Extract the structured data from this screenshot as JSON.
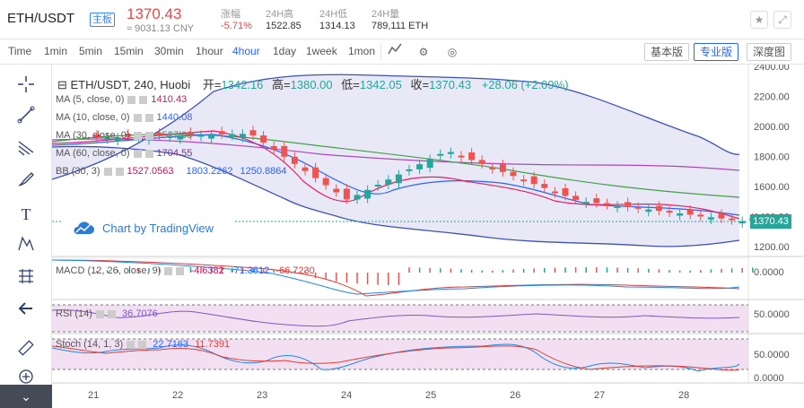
{
  "topbar": {
    "pair": "ETH/USDT",
    "badge": "主板",
    "price": "1370.43",
    "cny": "≈ 9031.13 CNY",
    "stats": [
      {
        "label": "涨幅",
        "value": "-5.71%",
        "color": "#e34b4b"
      },
      {
        "label": "24H高",
        "value": "1522.85",
        "color": "#333333"
      },
      {
        "label": "24H低",
        "value": "1314.13",
        "color": "#333333"
      },
      {
        "label": "24H量",
        "value": "789,111 ETH",
        "color": "#333333"
      }
    ],
    "star_icon": "star-icon",
    "fullscreen_icon": "fullscreen-icon"
  },
  "toolbar": {
    "timeframes": [
      "Time",
      "1min",
      "5min",
      "15min",
      "30min",
      "1hour",
      "4hour",
      "1day",
      "1week",
      "1mon"
    ],
    "active_timeframe": "4hour",
    "versions": [
      "基本版",
      "专业版",
      "深度图"
    ],
    "active_version": "专业版"
  },
  "chart_header": {
    "title": "ETH/USDT, 240, Huobi",
    "open_label": "开=",
    "open": "1342.16",
    "high_label": "高=",
    "high": "1380.00",
    "low_label": "低=",
    "low": "1342.05",
    "close_label": "收=",
    "close": "1370.43",
    "change": "+28.06 (+2.09%)"
  },
  "legends": {
    "ma5": {
      "label": "MA (5, close, 0)",
      "value": "1410.43",
      "color": "#c2185b"
    },
    "ma10": {
      "label": "MA (10, close, 0)",
      "value": "1440.08",
      "color": "#2962ff"
    },
    "ma30": {
      "label": "MA (30, close, 0)",
      "value": "1527.06",
      "color": "#43a047"
    },
    "ma60": {
      "label": "MA (60, close, 0)",
      "value": "1704.55",
      "color": "#8e24aa"
    },
    "bb": {
      "label": "BB (30, 3)",
      "v1": "1527.0563",
      "v2": "1803.2262",
      "v3": "1250.8864"
    }
  },
  "tv_logo": "Chart by TradingView",
  "last_price_tag": "1370.43",
  "price_axis": [
    "2400.00",
    "2200.00",
    "2000.00",
    "1800.00",
    "1600.00",
    "1400.00",
    "1200.00"
  ],
  "date_axis": [
    "21",
    "22",
    "23",
    "24",
    "25",
    "26",
    "27",
    "28"
  ],
  "macd": {
    "label": "MACD (12, 26, close, 9)",
    "v1": "-4.6382",
    "v2": "-71.3612",
    "v3": "-66.7230",
    "axis": "0.0000"
  },
  "rsi": {
    "label": "RSI (14)",
    "value": "36.7076",
    "axis": "50.0000"
  },
  "stoch": {
    "label": "Stoch (14, 1, 3)",
    "v1": "22.7163",
    "v2": "11.7391",
    "axis_top": "50.0000",
    "axis_bottom": "0.0000"
  },
  "chart_data": {
    "type": "line",
    "x": [
      "21",
      "22",
      "23",
      "24",
      "25",
      "26",
      "27",
      "28"
    ],
    "ylim": [
      1150,
      2400
    ],
    "series": [
      {
        "name": "MA (5, close, 0)",
        "values": [
          1900,
          1950,
          1850,
          1550,
          1650,
          1600,
          1500,
          1470
        ]
      },
      {
        "name": "MA (10, close, 0)",
        "values": [
          1920,
          1940,
          1880,
          1650,
          1620,
          1620,
          1520,
          1480
        ]
      },
      {
        "name": "MA (30, close, 0)",
        "values": [
          1960,
          1950,
          1880,
          1820,
          1720,
          1650,
          1580,
          1540
        ]
      },
      {
        "name": "MA (60, close, 0)",
        "values": [
          1900,
          1880,
          1850,
          1800,
          1760,
          1740,
          1720,
          1700
        ]
      }
    ]
  }
}
